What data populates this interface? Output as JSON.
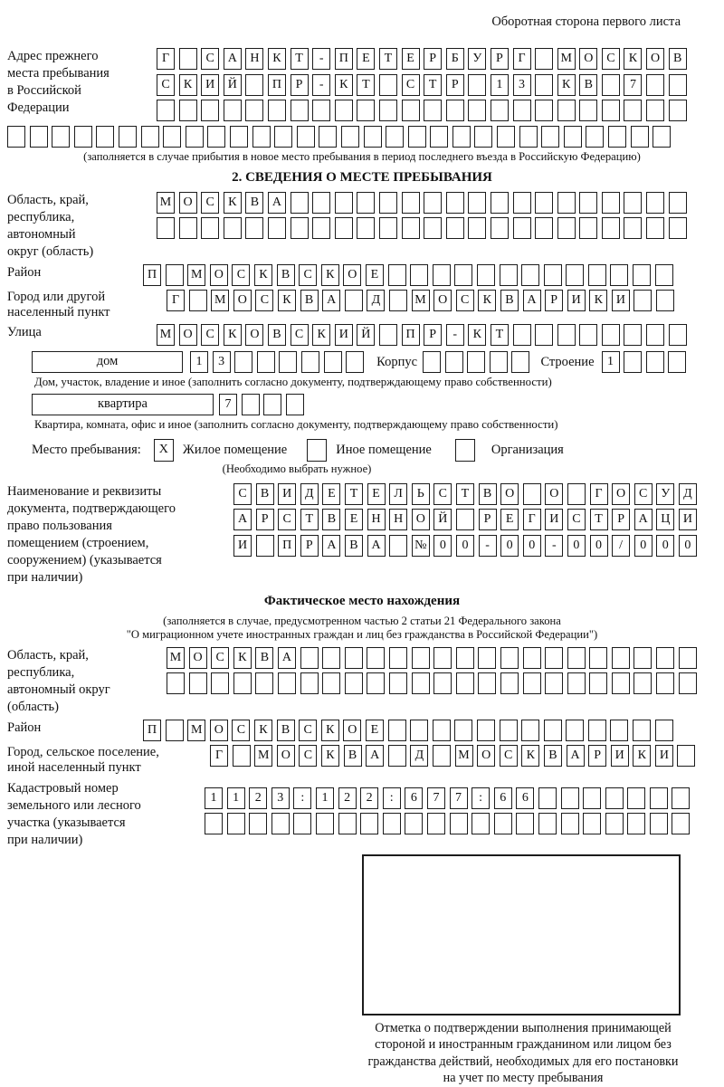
{
  "page": {
    "header_note": "Оборотная сторона первого листа"
  },
  "prev_address": {
    "label": [
      "Адрес прежнего",
      "места пребывания",
      "в Российской",
      "Федерации"
    ],
    "rows": [
      {
        "text": "Г САНКТ-ПЕТЕРБУРГ МОСКОВ",
        "len": 24
      },
      {
        "text": "СКИЙ ПР-КТ СТР 13 КВ 7",
        "len": 24
      },
      {
        "text": "",
        "len": 24
      }
    ],
    "overflow_row": {
      "text": "",
      "len": 30
    },
    "note": "(заполняется в случае прибытия в новое место пребывания в период последнего въезда в Российскую Федерацию)"
  },
  "section2": {
    "title": "2. СВЕДЕНИЯ О МЕСТЕ ПРЕБЫВАНИЯ",
    "region": {
      "label": [
        "Область, край,",
        "республика,",
        "автономный",
        "округ (область)"
      ],
      "rows": [
        {
          "text": "МОСКВА",
          "len": 24
        },
        {
          "text": "",
          "len": 24
        }
      ]
    },
    "district": {
      "label": "Район",
      "row": {
        "text": "П МОСКВСКОЕ",
        "len": 24
      }
    },
    "city": {
      "label": [
        "Город или другой",
        "населенный пункт"
      ],
      "row": {
        "text": "Г МОСКВА Д МОСКВАРИКИ",
        "len": 23
      }
    },
    "street": {
      "label": "Улица",
      "row": {
        "text": "МОСКОВСКИЙ ПР-КТ",
        "len": 24
      }
    },
    "house": {
      "box_label": "дом",
      "cells": {
        "text": "13",
        "len": 8
      },
      "korpus_label": "Корпус",
      "korpus_cells": {
        "text": "",
        "len": 5
      },
      "stroenie_label": "Строение",
      "stroenie_cells": {
        "text": "1",
        "len": 4
      },
      "note": "Дом, участок, владение и иное (заполнить согласно документу, подтверждающему право собственности)"
    },
    "apartment": {
      "box_label": "квартира",
      "cells": {
        "text": "7",
        "len": 4
      },
      "note": "Квартира, комната, офис и иное (заполнить согласно документу, подтверждающему право собственности)"
    },
    "stay_type": {
      "label": "Место пребывания:",
      "options": [
        {
          "mark": {
            "text": "X",
            "len": 1
          },
          "label": "Жилое помещение"
        },
        {
          "mark": {
            "text": "",
            "len": 1
          },
          "label": "Иное помещение"
        },
        {
          "mark": {
            "text": "",
            "len": 1
          },
          "label": "Организация"
        }
      ],
      "note": "(Необходимо выбрать нужное)"
    },
    "document": {
      "label": [
        "Наименование и реквизиты",
        "документа, подтверждающего",
        "право пользования",
        "помещением (строением,",
        "сооружением) (указывается",
        "при наличии)"
      ],
      "rows": [
        {
          "text": "СВИДЕТЕЛЬСТВО О ГОСУД",
          "len": 21
        },
        {
          "text": "АРСТВЕННОЙ РЕГИСТРАЦИ",
          "len": 21
        },
        {
          "text": "И ПРАВА №00-00-00/000",
          "len": 21
        }
      ]
    }
  },
  "actual_location": {
    "title": "Фактическое место нахождения",
    "note_lines": [
      "(заполняется в случае, предусмотренном частью 2 статьи 21 Федерального закона",
      "\"О миграционном учете иностранных граждан и лиц без гражданства в Российской Федерации\")"
    ],
    "region": {
      "label": [
        "Область, край,",
        "республика,",
        "автономный округ",
        "(область)"
      ],
      "rows": [
        {
          "text": "МОСКВА",
          "len": 24
        },
        {
          "text": "",
          "len": 24
        }
      ]
    },
    "district": {
      "label": "Район",
      "row": {
        "text": "П МОСКВСКОЕ",
        "len": 24
      }
    },
    "city": {
      "label": [
        "Город, сельское поселение,",
        "иной населенный пункт"
      ],
      "row": {
        "text": "Г МОСКВА Д МОСКВАРИКИ",
        "len": 22
      }
    },
    "cadastral": {
      "label": [
        "Кадастровый номер",
        "земельного или лесного",
        "участка (указывается",
        "при наличии)"
      ],
      "rows": [
        {
          "text": "1123:122:677:66",
          "len": 22
        },
        {
          "text": "",
          "len": 22
        }
      ]
    }
  },
  "confirmation": {
    "caption_lines": [
      "Отметка о подтверждении выполнения принимающей",
      "стороной и иностранным гражданином или лицом без",
      "гражданства действий, необходимых для его постановки",
      "на учет по месту пребывания"
    ]
  }
}
